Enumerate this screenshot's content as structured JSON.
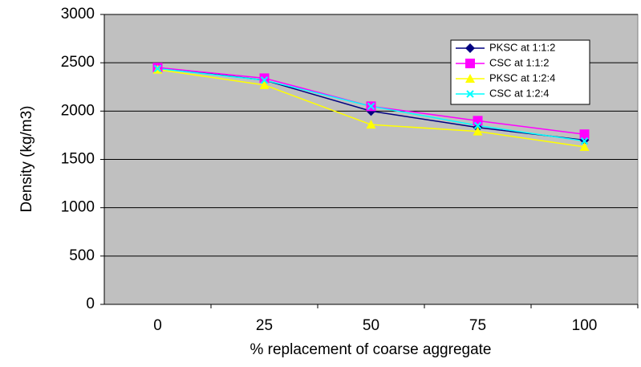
{
  "chart_data": {
    "type": "line",
    "x_label": "% replacement of coarse aggregate",
    "y_label": "Density (kg/m3)",
    "categories": [
      "0",
      "25",
      "50",
      "75",
      "100"
    ],
    "series": [
      {
        "name": "PKSC at 1:1:2",
        "color": "#000080",
        "marker": "diamond",
        "values": [
          2450,
          2320,
          2000,
          1830,
          1700
        ]
      },
      {
        "name": "CSC at 1:1:2",
        "color": "#ff00ff",
        "marker": "square",
        "values": [
          2450,
          2340,
          2050,
          1900,
          1760
        ]
      },
      {
        "name": "PKSC at 1:2:4",
        "color": "#ffff00",
        "marker": "triangle",
        "values": [
          2430,
          2270,
          1860,
          1790,
          1630
        ]
      },
      {
        "name": "CSC at 1:2:4",
        "color": "#00ffff",
        "marker": "x",
        "values": [
          2440,
          2320,
          2050,
          1850,
          1690
        ]
      }
    ],
    "ylim": [
      0,
      3000
    ],
    "yticks": [
      0,
      500,
      1000,
      1500,
      2000,
      2500,
      3000
    ],
    "grid": true,
    "plot_background": "#c0c0c0"
  }
}
